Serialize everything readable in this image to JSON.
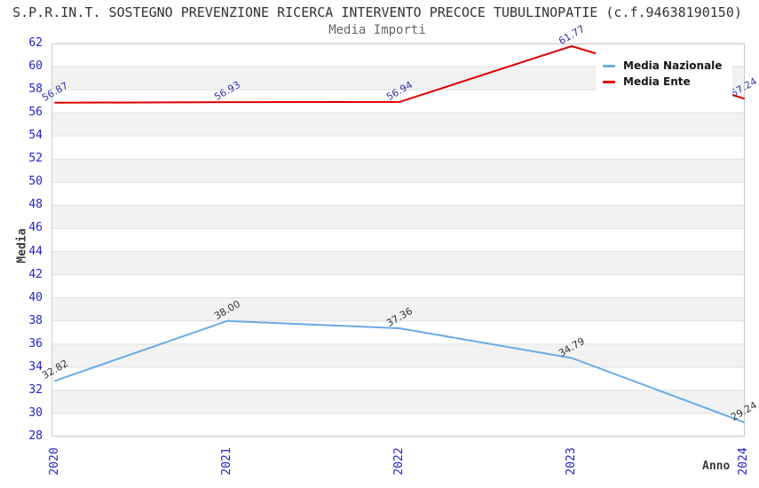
{
  "header": {
    "title": "S.P.R.IN.T. SOSTEGNO PREVENZIONE RICERCA INTERVENTO PRECOCE TUBULINOPATIE (c.f.94638190150)",
    "subtitle": "Media Importi"
  },
  "chart_data": {
    "type": "line",
    "x": [
      "2020",
      "2021",
      "2022",
      "2023",
      "2024"
    ],
    "xlabel": "Anno",
    "ylabel": "Media",
    "ylim": [
      28,
      62
    ],
    "ytick_step": 2,
    "grid": "horizontal-bands-alternating",
    "legend_position": "top-right",
    "axis_tick_color": "#2222cc",
    "band_colors": [
      "#ffffff",
      "#f2f2f2"
    ],
    "gridline_color": "#e0e0e0",
    "border_color": "#cccccc",
    "series": [
      {
        "name": "Media Nazionale",
        "color": "#6aaae6",
        "label_color": "#303030",
        "values": [
          32.82,
          38.0,
          37.36,
          34.79,
          29.24
        ],
        "labels": [
          "32.82",
          "38.00",
          "37.36",
          "34.79",
          "29.24"
        ]
      },
      {
        "name": "Media Ente",
        "color": "#dd0000",
        "label_color": "#3333aa",
        "values": [
          56.87,
          56.93,
          56.94,
          61.77,
          57.24
        ],
        "labels": [
          "56.87",
          "56.93",
          "56.94",
          "61.77",
          "57.24"
        ]
      }
    ]
  }
}
